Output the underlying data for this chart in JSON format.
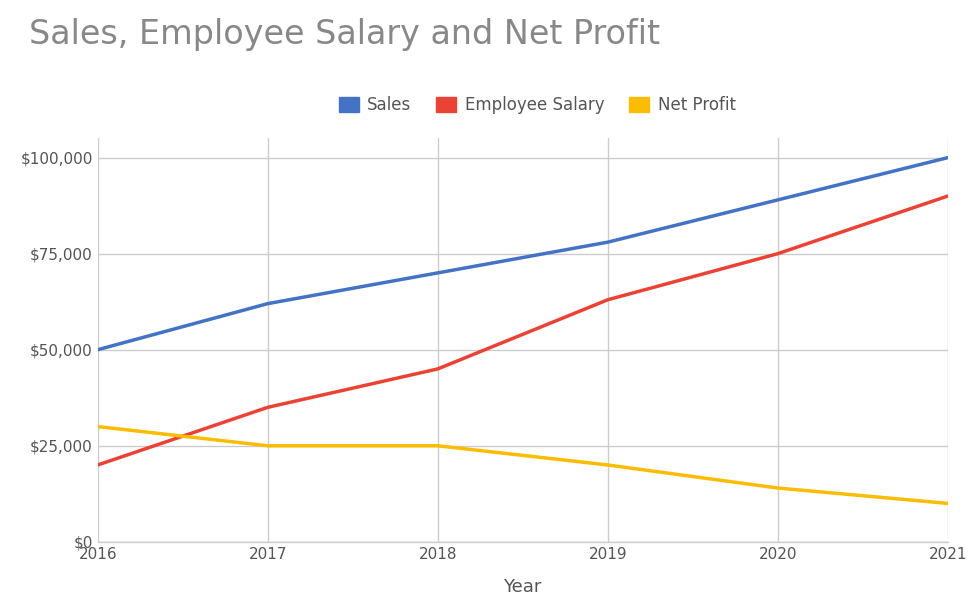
{
  "title": "Sales, Employee Salary and Net Profit",
  "xlabel": "Year",
  "years": [
    2016,
    2017,
    2018,
    2019,
    2020,
    2021
  ],
  "sales": [
    50000,
    62000,
    70000,
    78000,
    89000,
    100000
  ],
  "employee_salary": [
    20000,
    35000,
    45000,
    63000,
    75000,
    90000
  ],
  "net_profit": [
    30000,
    25000,
    25000,
    20000,
    14000,
    10000
  ],
  "sales_color": "#4472C4",
  "salary_color": "#EA4335",
  "profit_color": "#FBBC04",
  "sales_label": "Sales",
  "salary_label": "Employee Salary",
  "profit_label": "Net Profit",
  "ylim": [
    0,
    105000
  ],
  "yticks": [
    0,
    25000,
    50000,
    75000,
    100000
  ],
  "xlim": [
    2016,
    2021
  ],
  "background_color": "#ffffff",
  "plot_bg_color": "#ffffff",
  "title_color": "#888888",
  "title_fontsize": 24,
  "axis_label_fontsize": 13,
  "tick_fontsize": 11,
  "legend_fontsize": 12,
  "line_width": 2.5,
  "grid_color": "#cccccc",
  "grid_linewidth": 1.0,
  "tick_color": "#555555"
}
